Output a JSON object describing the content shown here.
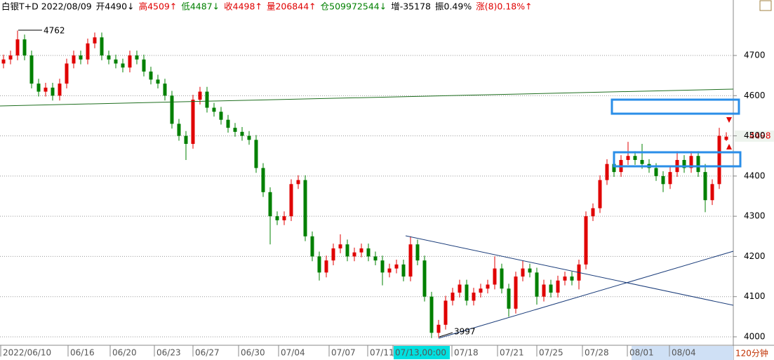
{
  "chart_data": {
    "type": "candlestick",
    "header": [
      {
        "text": "白银T+D 2022/08/09",
        "color": "#000000"
      },
      {
        "text": "开4490↓",
        "color": "#000000"
      },
      {
        "text": "高4509↑",
        "color": "#e00000"
      },
      {
        "text": "低4487↓",
        "color": "#008000"
      },
      {
        "text": "收4498↑",
        "color": "#e00000"
      },
      {
        "text": "量206844↑",
        "color": "#e00000"
      },
      {
        "text": "仓509972544↓",
        "color": "#008000"
      },
      {
        "text": "增-35178",
        "color": "#000000"
      },
      {
        "text": "振0.49%",
        "color": "#000000"
      },
      {
        "text": "涨(8)0.18%↑",
        "color": "#e00000"
      }
    ],
    "x_labels": [
      "2022/06/10",
      "06/16",
      "06/20",
      "06/23",
      "06/27",
      "06/30",
      "07/04",
      "07/07",
      "07/11",
      "07/13,00:00",
      "07/18",
      "07/21",
      "07/25",
      "07/28",
      "08/01",
      "08/04"
    ],
    "period": "120分钟",
    "up_color": "#e00000",
    "down_color": "#008000",
    "ylim": [
      3979,
      4838
    ],
    "yticks": [
      4000,
      4100,
      4200,
      4300,
      4400,
      4500,
      4600,
      4700
    ],
    "grid": true,
    "open": [
      4680,
      4690,
      4700,
      4740,
      4700,
      4630,
      4610,
      4620,
      4600,
      4630,
      4680,
      4700,
      4690,
      4730,
      4745,
      4700,
      4690,
      4680,
      4670,
      4700,
      4690,
      4660,
      4640,
      4630,
      4600,
      4530,
      4500,
      4480,
      4590,
      4610,
      4570,
      4560,
      4540,
      4520,
      4510,
      4500,
      4490,
      4420,
      4360,
      4300,
      4290,
      4300,
      4380,
      4390,
      4250,
      4200,
      4160,
      4190,
      4220,
      4230,
      4200,
      4210,
      4220,
      4200,
      4190,
      4160,
      4170,
      4180,
      4150,
      4230,
      4190,
      4100,
      4010,
      4030,
      4090,
      4110,
      4130,
      4090,
      4110,
      4120,
      4130,
      4170,
      4120,
      4070,
      4150,
      4170,
      4160,
      4100,
      4130,
      4110,
      4140,
      4150,
      4140,
      4180,
      4300,
      4320,
      4390,
      4430,
      4410,
      4440,
      4450,
      4440,
      4430,
      4420,
      4400,
      4380,
      4410,
      4440,
      4420,
      4450,
      4410,
      4340,
      4380,
      4490
    ],
    "high": [
      4702,
      4712,
      4762,
      4752,
      4712,
      4642,
      4632,
      4632,
      4642,
      4692,
      4712,
      4712,
      4742,
      4757,
      4757,
      4712,
      4702,
      4692,
      4712,
      4712,
      4702,
      4672,
      4652,
      4642,
      4612,
      4542,
      4512,
      4602,
      4622,
      4622,
      4582,
      4572,
      4552,
      4532,
      4522,
      4512,
      4502,
      4432,
      4372,
      4312,
      4312,
      4392,
      4402,
      4402,
      4262,
      4212,
      4202,
      4232,
      4255,
      4242,
      4222,
      4232,
      4232,
      4212,
      4202,
      4182,
      4192,
      4192,
      4250,
      4242,
      4202,
      4112,
      4042,
      4102,
      4122,
      4142,
      4142,
      4122,
      4132,
      4142,
      4200,
      4182,
      4132,
      4162,
      4190,
      4182,
      4172,
      4142,
      4142,
      4152,
      4162,
      4162,
      4192,
      4312,
      4332,
      4402,
      4442,
      4442,
      4452,
      4485,
      4462,
      4480,
      4442,
      4432,
      4412,
      4422,
      4462,
      4452,
      4462,
      4462,
      4430,
      4392,
      4520,
      4509
    ],
    "low": [
      4668,
      4678,
      4688,
      4688,
      4618,
      4598,
      4598,
      4588,
      4588,
      4618,
      4668,
      4678,
      4678,
      4718,
      4688,
      4678,
      4668,
      4658,
      4658,
      4678,
      4648,
      4628,
      4618,
      4588,
      4518,
      4488,
      4440,
      4468,
      4578,
      4558,
      4548,
      4528,
      4508,
      4498,
      4488,
      4478,
      4408,
      4348,
      4230,
      4278,
      4278,
      4288,
      4368,
      4238,
      4188,
      4140,
      4148,
      4178,
      4208,
      4188,
      4188,
      4198,
      4188,
      4178,
      4128,
      4148,
      4158,
      4138,
      4138,
      4178,
      4088,
      3997,
      3998,
      4018,
      4078,
      4098,
      4078,
      4078,
      4098,
      4108,
      4118,
      4108,
      4050,
      4058,
      4138,
      4148,
      4080,
      4088,
      4098,
      4098,
      4128,
      4128,
      4118,
      4168,
      4288,
      4308,
      4378,
      4398,
      4398,
      4428,
      4428,
      4418,
      4408,
      4388,
      4360,
      4368,
      4398,
      4408,
      4408,
      4398,
      4310,
      4328,
      4368,
      4487
    ],
    "close": [
      4690,
      4700,
      4740,
      4700,
      4630,
      4610,
      4620,
      4600,
      4630,
      4680,
      4700,
      4690,
      4730,
      4745,
      4700,
      4690,
      4680,
      4670,
      4700,
      4690,
      4660,
      4640,
      4630,
      4600,
      4530,
      4500,
      4480,
      4590,
      4610,
      4570,
      4560,
      4540,
      4520,
      4510,
      4500,
      4490,
      4420,
      4360,
      4300,
      4290,
      4300,
      4380,
      4390,
      4250,
      4200,
      4160,
      4190,
      4220,
      4230,
      4200,
      4210,
      4220,
      4200,
      4190,
      4160,
      4170,
      4180,
      4150,
      4230,
      4190,
      4100,
      4010,
      4030,
      4090,
      4110,
      4130,
      4090,
      4110,
      4120,
      4130,
      4170,
      4120,
      4070,
      4150,
      4170,
      4160,
      4100,
      4130,
      4110,
      4140,
      4150,
      4140,
      4180,
      4300,
      4320,
      4390,
      4430,
      4410,
      4440,
      4450,
      4440,
      4430,
      4420,
      4400,
      4380,
      4410,
      4440,
      4420,
      4450,
      4410,
      4340,
      4380,
      4500,
      4498
    ]
  }
}
